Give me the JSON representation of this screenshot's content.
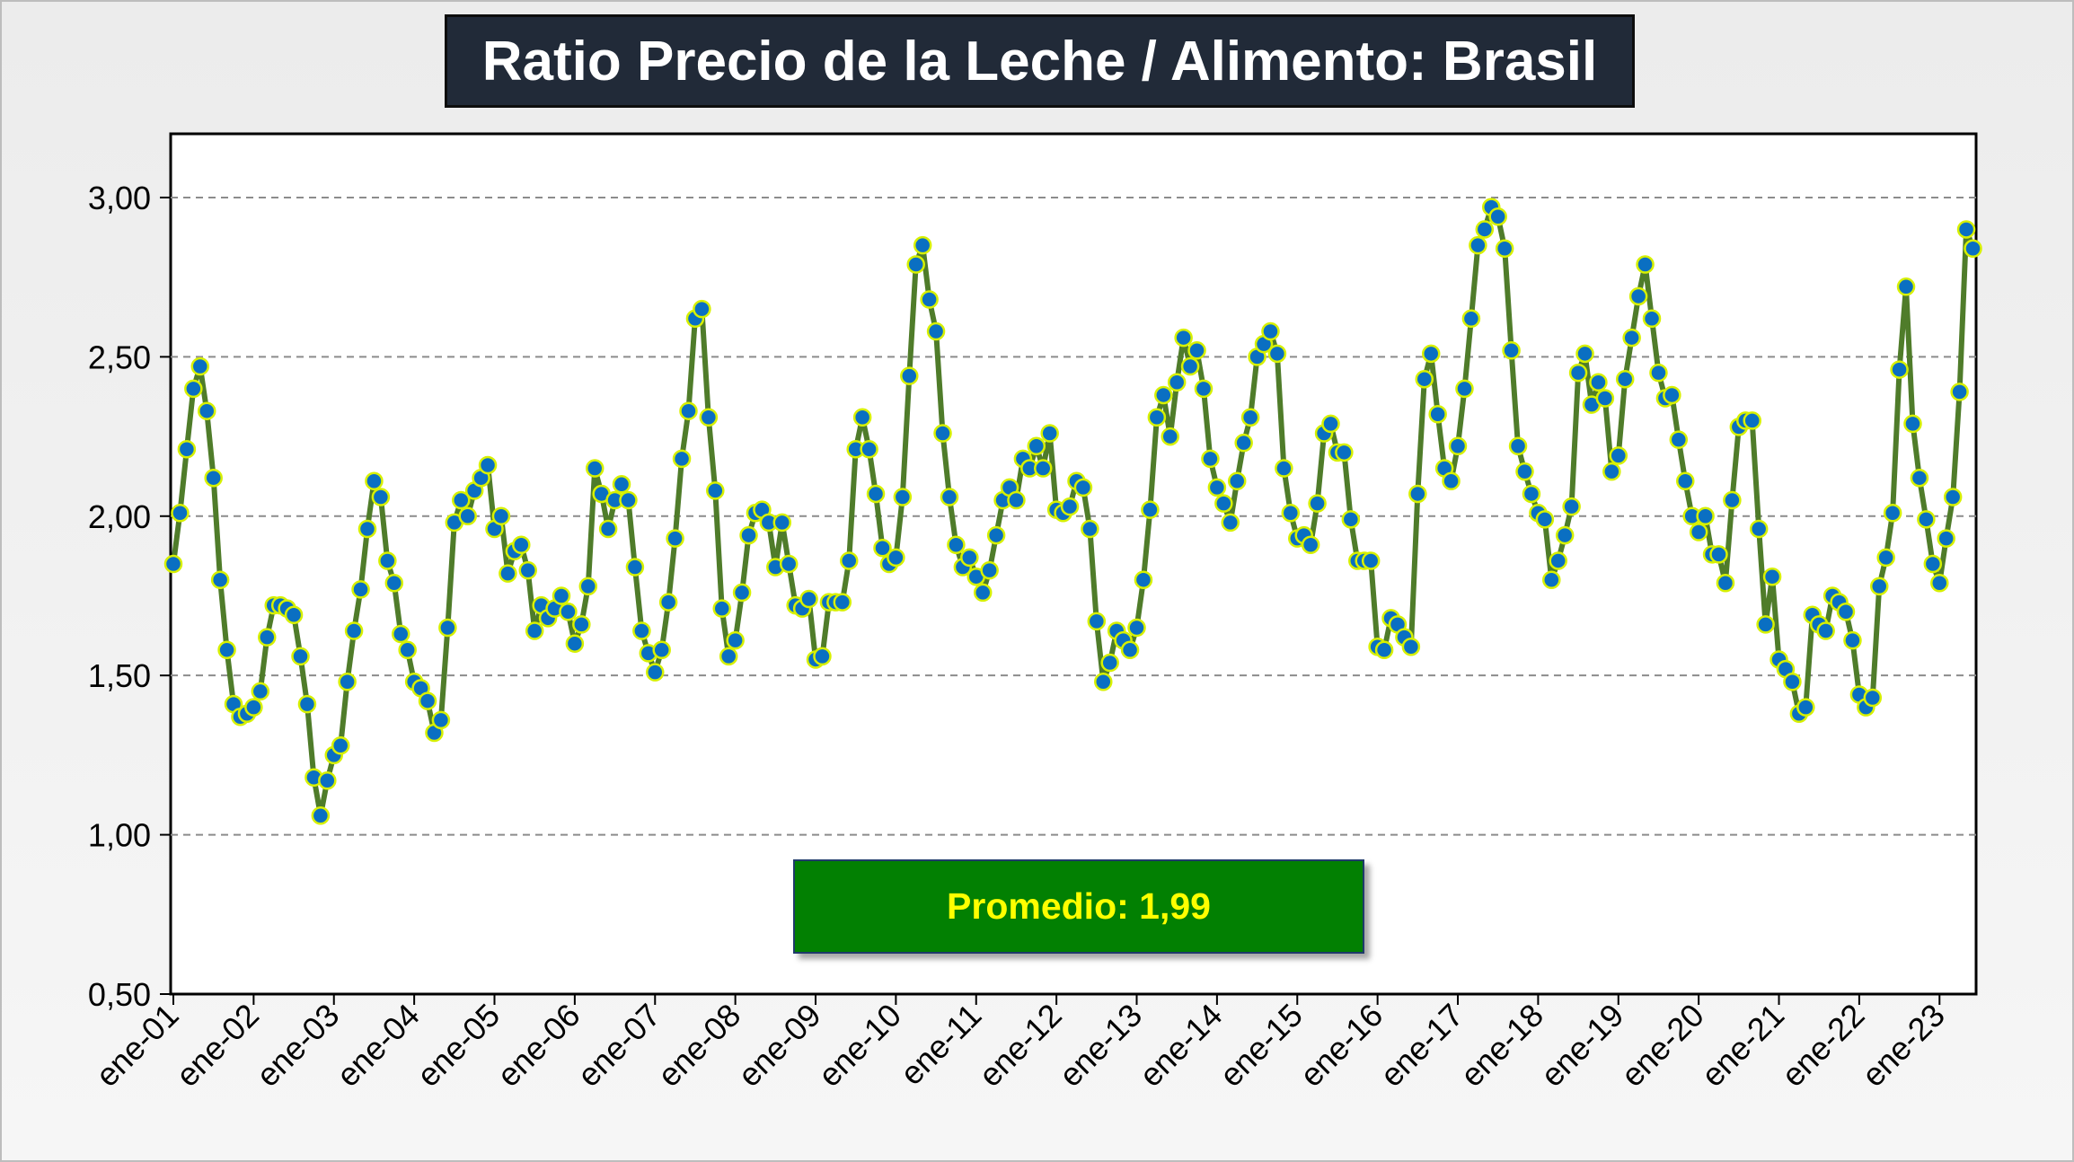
{
  "chart_data": {
    "type": "line",
    "title": "Ratio Precio de la Leche / Alimento: Brasil",
    "xlabel": "",
    "ylabel": "",
    "ylim": [
      0.5,
      3.2
    ],
    "yticks": [
      "0,50",
      "1,00",
      "1,50",
      "2,00",
      "2,50",
      "3,00"
    ],
    "ytick_values": [
      0.5,
      1.0,
      1.5,
      2.0,
      2.5,
      3.0
    ],
    "xtick_labels": [
      "ene-01",
      "ene-02",
      "ene-03",
      "ene-04",
      "ene-05",
      "ene-06",
      "ene-07",
      "ene-08",
      "ene-09",
      "ene-10",
      "ene-11",
      "ene-12",
      "ene-13",
      "ene-14",
      "ene-15",
      "ene-16",
      "ene-17",
      "ene-18",
      "ene-19",
      "ene-20",
      "ene-21",
      "ene-22",
      "ene-23"
    ],
    "grid": "horizontal dashed",
    "colors": {
      "line": "#4f7c2a",
      "marker_fill": "#0a6fc2",
      "marker_edge": "#d7f000"
    },
    "annotation": "Promedio: 1,99",
    "series": [
      {
        "start": "ene-01",
        "frequency": "monthly",
        "values": [
          1.85,
          2.01,
          2.21,
          2.4,
          2.47,
          2.33,
          2.12,
          1.8,
          1.58,
          1.41,
          1.37,
          1.38,
          1.4,
          1.45,
          1.62,
          1.72,
          1.72,
          1.71,
          1.69,
          1.56,
          1.41,
          1.18,
          1.06,
          1.17,
          1.25,
          1.28,
          1.48,
          1.64,
          1.77,
          1.96,
          2.11,
          2.06,
          1.86,
          1.79,
          1.63,
          1.58,
          1.48,
          1.46,
          1.42,
          1.32,
          1.36,
          1.65,
          1.98,
          2.05,
          2.0,
          2.08,
          2.12,
          2.16,
          1.96,
          2.0,
          1.82,
          1.89,
          1.91,
          1.83,
          1.64,
          1.72,
          1.68,
          1.71,
          1.75,
          1.7,
          1.6,
          1.66,
          1.78,
          2.15,
          2.07,
          1.96,
          2.05,
          2.1,
          2.05,
          1.84,
          1.64,
          1.57,
          1.51,
          1.58,
          1.73,
          1.93,
          2.18,
          2.33,
          2.62,
          2.65,
          2.31,
          2.08,
          1.71,
          1.56,
          1.61,
          1.76,
          1.94,
          2.01,
          2.02,
          1.98,
          1.84,
          1.98,
          1.85,
          1.72,
          1.71,
          1.74,
          1.55,
          1.56,
          1.73,
          1.73,
          1.73,
          1.86,
          2.21,
          2.31,
          2.21,
          2.07,
          1.9,
          1.85,
          1.87,
          2.06,
          2.44,
          2.79,
          2.85,
          2.68,
          2.58,
          2.26,
          2.06,
          1.91,
          1.84,
          1.87,
          1.81,
          1.76,
          1.83,
          1.94,
          2.05,
          2.09,
          2.05,
          2.18,
          2.15,
          2.22,
          2.15,
          2.26,
          2.02,
          2.01,
          2.03,
          2.11,
          2.09,
          1.96,
          1.67,
          1.48,
          1.54,
          1.64,
          1.61,
          1.58,
          1.65,
          1.8,
          2.02,
          2.31,
          2.38,
          2.25,
          2.42,
          2.56,
          2.47,
          2.52,
          2.4,
          2.18,
          2.09,
          2.04,
          1.98,
          2.11,
          2.23,
          2.31,
          2.5,
          2.54,
          2.58,
          2.51,
          2.15,
          2.01,
          1.93,
          1.94,
          1.91,
          2.04,
          2.26,
          2.29,
          2.2,
          2.2,
          1.99,
          1.86,
          1.86,
          1.86,
          1.59,
          1.58,
          1.68,
          1.66,
          1.62,
          1.59,
          2.07,
          2.43,
          2.51,
          2.32,
          2.15,
          2.11,
          2.22,
          2.4,
          2.62,
          2.85,
          2.9,
          2.97,
          2.94,
          2.84,
          2.52,
          2.22,
          2.14,
          2.07,
          2.01,
          1.99,
          1.8,
          1.86,
          1.94,
          2.03,
          2.45,
          2.51,
          2.35,
          2.42,
          2.37,
          2.14,
          2.19,
          2.43,
          2.56,
          2.69,
          2.79,
          2.62,
          2.45,
          2.37,
          2.38,
          2.24,
          2.11,
          2.0,
          1.95,
          2.0,
          1.88,
          1.88,
          1.79,
          2.05,
          2.28,
          2.3,
          2.3,
          1.96,
          1.66,
          1.81,
          1.55,
          1.52,
          1.48,
          1.38,
          1.4,
          1.69,
          1.66,
          1.64,
          1.75,
          1.73,
          1.7,
          1.61,
          1.44,
          1.4,
          1.43,
          1.78,
          1.87,
          2.01,
          2.46,
          2.72,
          2.29,
          2.12,
          1.99,
          1.85,
          1.79,
          1.93,
          2.06,
          2.39,
          2.9,
          2.84
        ]
      }
    ]
  }
}
